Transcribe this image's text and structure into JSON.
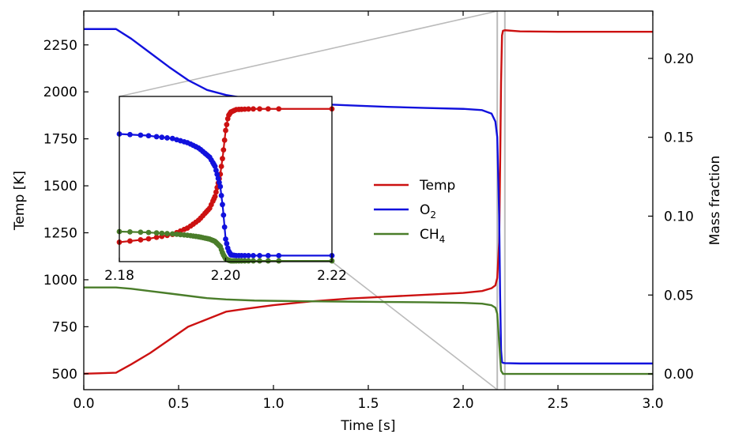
{
  "chart_data": {
    "type": "line",
    "xlabel": "Time [s]",
    "ylabel_left": "Temp [K]",
    "ylabel_right": "Mass fraction",
    "xlim": [
      0.0,
      3.0
    ],
    "ylim_left": [
      415,
      2430
    ],
    "ylim_right": [
      -0.01,
      0.23
    ],
    "x_ticks": [
      "0.0",
      "0.5",
      "1.0",
      "1.5",
      "2.0",
      "2.5",
      "3.0"
    ],
    "y_left_ticks": [
      "500",
      "750",
      "1000",
      "1250",
      "1500",
      "1750",
      "2000",
      "2250"
    ],
    "y_right_ticks": [
      "0.00",
      "0.05",
      "0.10",
      "0.15",
      "0.20"
    ],
    "legend": {
      "position": "center-right",
      "entries": [
        {
          "name": "Temp",
          "sub": ""
        },
        {
          "name": "O",
          "sub": "2"
        },
        {
          "name": "CH",
          "sub": "4"
        }
      ]
    },
    "colors": {
      "Temp": "#cc1111",
      "O2": "#1111dd",
      "CH4": "#4a7d2a",
      "zoom": "#bbbbbb"
    },
    "series": [
      {
        "name": "Temp",
        "axis": "left",
        "x": [
          0,
          0.17,
          0.25,
          0.35,
          0.45,
          0.55,
          0.65,
          0.75,
          0.85,
          1.0,
          1.2,
          1.4,
          1.6,
          1.8,
          2.0,
          2.1,
          2.15,
          2.17,
          2.18,
          2.19,
          2.195,
          2.2,
          2.205,
          2.21,
          2.22,
          2.3,
          2.5,
          3.0
        ],
        "y": [
          500,
          505,
          550,
          610,
          680,
          750,
          790,
          830,
          845,
          865,
          885,
          900,
          910,
          920,
          930,
          940,
          955,
          970,
          1010,
          1200,
          1600,
          2050,
          2300,
          2325,
          2328,
          2322,
          2320,
          2320
        ]
      },
      {
        "name": "O2",
        "axis": "right",
        "x": [
          0,
          0.17,
          0.25,
          0.35,
          0.45,
          0.55,
          0.65,
          0.75,
          0.9,
          1.0,
          1.2,
          1.4,
          1.6,
          1.8,
          2.0,
          2.1,
          2.15,
          2.17,
          2.18,
          2.19,
          2.195,
          2.2,
          2.205,
          2.21,
          2.22,
          2.3,
          3.0
        ],
        "y": [
          0.2186,
          0.2186,
          0.2125,
          0.2035,
          0.1945,
          0.1862,
          0.18,
          0.1768,
          0.1738,
          0.1726,
          0.1712,
          0.1702,
          0.1693,
          0.1686,
          0.168,
          0.1672,
          0.165,
          0.16,
          0.15,
          0.1,
          0.05,
          0.015,
          0.0075,
          0.007,
          0.0068,
          0.0066,
          0.0066
        ]
      },
      {
        "name": "CH4",
        "axis": "right",
        "x": [
          0,
          0.17,
          0.25,
          0.35,
          0.45,
          0.55,
          0.65,
          0.75,
          0.9,
          1.0,
          1.2,
          1.4,
          1.6,
          1.8,
          2.0,
          2.1,
          2.15,
          2.17,
          2.18,
          2.19,
          2.2,
          2.21,
          2.22,
          3.0
        ],
        "y": [
          0.0548,
          0.0548,
          0.054,
          0.0525,
          0.051,
          0.0495,
          0.048,
          0.0472,
          0.0465,
          0.0463,
          0.046,
          0.0458,
          0.0456,
          0.0454,
          0.045,
          0.0445,
          0.0435,
          0.042,
          0.038,
          0.02,
          0.002,
          0.0,
          0.0,
          0.0
        ]
      }
    ],
    "zoom_band": {
      "x": [
        2.18,
        2.22
      ]
    },
    "inset": {
      "xlim": [
        2.18,
        2.22
      ],
      "x_ticks": [
        "2.18",
        "2.20",
        "2.22"
      ],
      "ylim_left": [
        750,
        2450
      ],
      "ylim_right": [
        0.0,
        0.22
      ],
      "series": [
        {
          "name": "Temp",
          "axis": "left",
          "x": [
            2.18,
            2.185,
            2.19,
            2.193,
            2.195,
            2.197,
            2.198,
            2.199,
            2.1995,
            2.2,
            2.2005,
            2.201,
            2.202,
            2.204,
            2.206,
            2.21,
            2.22
          ],
          "y": [
            950,
            980,
            1030,
            1100,
            1180,
            1300,
            1420,
            1650,
            1850,
            2100,
            2250,
            2290,
            2315,
            2320,
            2322,
            2322,
            2322
          ]
        },
        {
          "name": "O2",
          "axis": "right",
          "x": [
            2.18,
            2.185,
            2.19,
            2.193,
            2.195,
            2.197,
            2.198,
            2.199,
            2.1995,
            2.2,
            2.2005,
            2.201,
            2.202,
            2.205,
            2.21,
            2.22
          ],
          "y": [
            0.17,
            0.168,
            0.164,
            0.158,
            0.151,
            0.139,
            0.127,
            0.1,
            0.07,
            0.03,
            0.015,
            0.009,
            0.008,
            0.008,
            0.008,
            0.008
          ]
        },
        {
          "name": "CH4",
          "axis": "right",
          "x": [
            2.18,
            2.185,
            2.19,
            2.193,
            2.195,
            2.197,
            2.198,
            2.199,
            2.1995,
            2.2,
            2.2005,
            2.201,
            2.202,
            2.205,
            2.21,
            2.22
          ],
          "y": [
            0.04,
            0.039,
            0.037,
            0.035,
            0.033,
            0.03,
            0.027,
            0.02,
            0.01,
            0.004,
            0.002,
            0.001,
            0.001,
            0.001,
            0.001,
            0.001
          ]
        }
      ],
      "dot_times": [
        2.18,
        2.182,
        2.184,
        2.1855,
        2.187,
        2.188,
        2.189,
        2.19,
        2.1908,
        2.1915,
        2.1922,
        2.1928,
        2.1934,
        2.1939,
        2.1944,
        2.1949,
        2.1953,
        2.1957,
        2.1961,
        2.1964,
        2.1967,
        2.197,
        2.1973,
        2.1976,
        2.1978,
        2.198,
        2.1982,
        2.1984,
        2.1986,
        2.1988,
        2.199,
        2.1992,
        2.1994,
        2.1996,
        2.1998,
        2.2,
        2.2002,
        2.2004,
        2.2006,
        2.2008,
        2.201,
        2.2013,
        2.2016,
        2.202,
        2.2025,
        2.203,
        2.2036,
        2.2043,
        2.2052,
        2.2064,
        2.208,
        2.21,
        2.22
      ]
    }
  }
}
